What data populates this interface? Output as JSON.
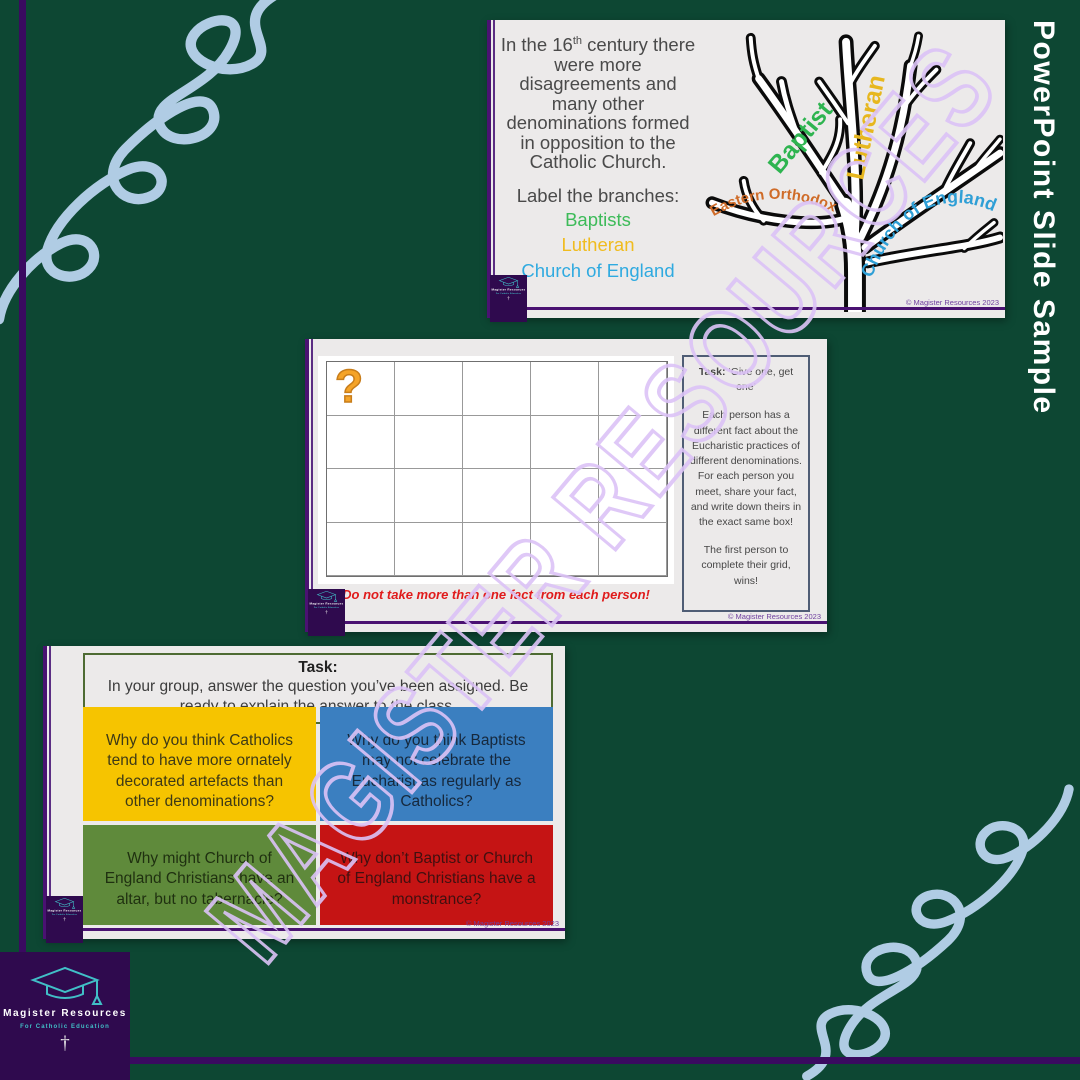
{
  "page": {
    "background_color": "#0d4733",
    "accent_purple": "#3a0a60",
    "squiggle_color": "#b9d4ee",
    "vertical_label": "PowerPoint Slide Sample",
    "watermark": "MAGISTER RESOURCES",
    "watermark_color": "#dcc3f7"
  },
  "logo": {
    "name": "Magister Resources",
    "tagline": "For Catholic Education",
    "cross": "†",
    "background_color": "#2f0a4e",
    "teal": "#41bfc7"
  },
  "slides": {
    "copyright": "© Magister Resources 2023",
    "slide1": {
      "intro_prefix": "In the 16",
      "intro_sup": "th",
      "intro_rest": " century there were more disagreements and many other denominations formed in opposition to the Catholic Church.",
      "label_title": "Label the branches:",
      "options": [
        {
          "label": "Baptists",
          "color": "#3dbb59"
        },
        {
          "label": "Lutheran",
          "color": "#f0bc1f"
        },
        {
          "label": "Church of England",
          "color": "#2faae0"
        }
      ],
      "tree_labels": {
        "baptist": {
          "text": "Baptist",
          "color": "#2eb450"
        },
        "lutheran": {
          "text": "Lutheran",
          "color": "#e7b71e"
        },
        "eastern_orthodox": {
          "text": "Eastern Orthodox",
          "color": "#cf6b28"
        },
        "church_of_england": {
          "text": "Church of England",
          "color": "#2f9fd6"
        }
      }
    },
    "slide2": {
      "question_mark": "?",
      "grid": {
        "rows": 4,
        "cols": 5
      },
      "task_title": "Task:",
      "task_quote": "‘Give one, get one’",
      "task_body": "Each person has a different fact about the Eucharistic practices of different denominations. For each person you meet, share your fact, and write down theirs in the exact same box!",
      "task_footer": "The first person to complete their grid, wins!",
      "warning": "Do not take more than one fact from each person!"
    },
    "slide3": {
      "header_title": "Task:",
      "header_body": "In your group, answer the question you’ve been assigned. Be ready to explain the answer to the class.",
      "quadrants": [
        {
          "text": "Why do you think Catholics tend to have more ornately decorated artefacts than other denominations?",
          "bg": "#f6c400",
          "fg": "#3e3a16"
        },
        {
          "text": "Why do you think Baptists may not celebrate the Eucharist as regularly as Catholics?",
          "bg": "#3b7fc0",
          "fg": "#16283c"
        },
        {
          "text": "Why might Church of England Christians have an altar, but no tabernacle?",
          "bg": "#5f8a3b",
          "fg": "#1f3010"
        },
        {
          "text": "Why don’t Baptist or Church of England Christians have a monstrance?",
          "bg": "#c51414",
          "fg": "#411010"
        }
      ]
    }
  }
}
